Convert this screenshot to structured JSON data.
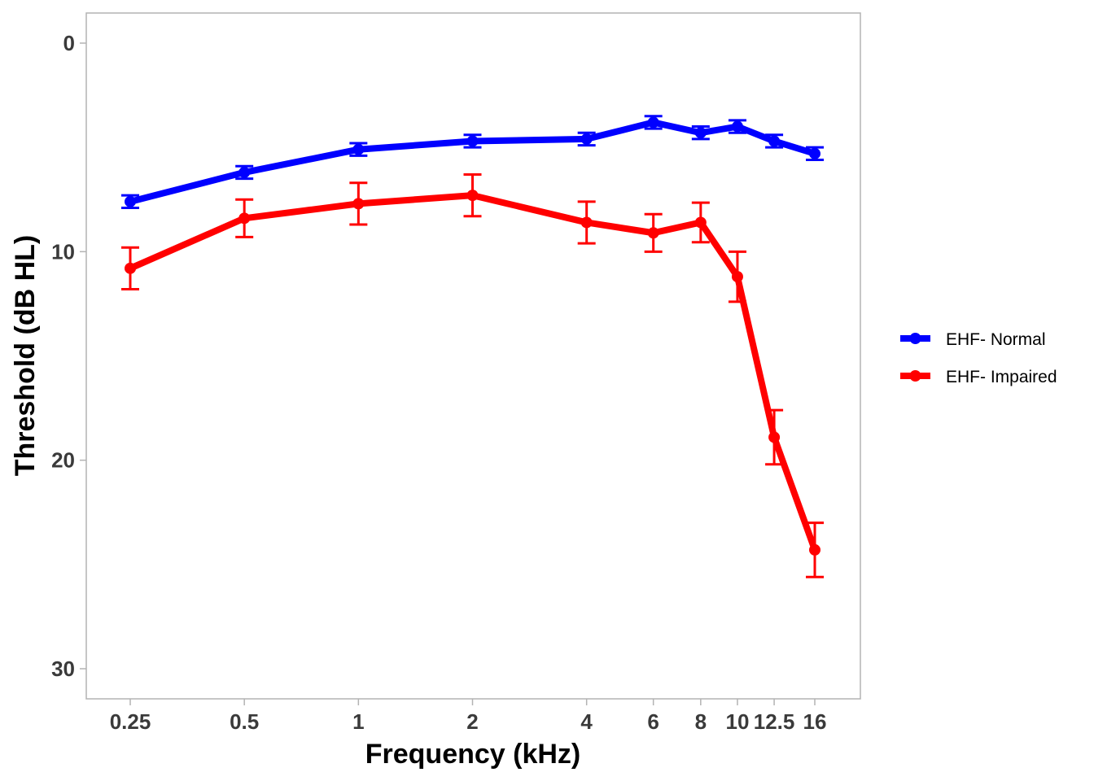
{
  "chart_data": {
    "type": "line",
    "title": "",
    "xlabel": "Frequency (kHz)",
    "ylabel": "Threshold (dB HL)",
    "x": [
      0.25,
      0.5,
      1,
      2,
      4,
      6,
      8,
      10,
      12.5,
      16
    ],
    "x_tick_labels": [
      "0.25",
      "0.5",
      "1",
      "2",
      "4",
      "6",
      "8",
      "10",
      "12.5",
      "16"
    ],
    "x_scale": "log",
    "y_ticks": [
      0,
      10,
      20,
      30
    ],
    "y_tick_labels": [
      "0",
      "10",
      "20",
      "30"
    ],
    "ylim": [
      31.5,
      -1.5
    ],
    "y_reversed": true,
    "grid": false,
    "legend_position": "right",
    "series": [
      {
        "name": "EHF- Normal",
        "color": "#0000ff",
        "values": [
          7.6,
          6.2,
          5.1,
          4.7,
          4.6,
          3.8,
          4.3,
          4.0,
          4.7,
          5.3
        ],
        "error": [
          0.3,
          0.3,
          0.3,
          0.3,
          0.3,
          0.3,
          0.3,
          0.3,
          0.3,
          0.3
        ]
      },
      {
        "name": "EHF- Impaired",
        "color": "#ff0000",
        "values": [
          10.8,
          8.4,
          7.7,
          7.3,
          8.6,
          9.1,
          8.6,
          11.2,
          18.9,
          24.3
        ],
        "error": [
          1.0,
          0.9,
          1.0,
          1.0,
          1.0,
          0.9,
          0.95,
          1.2,
          1.3,
          1.3
        ]
      }
    ]
  }
}
